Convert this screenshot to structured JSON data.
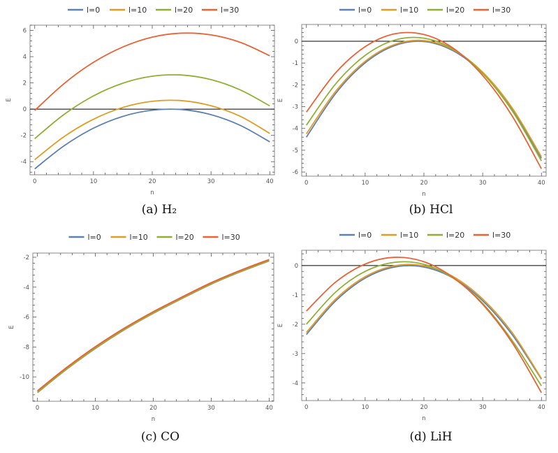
{
  "colors": {
    "l0": "#5E81B5",
    "l10": "#E19C24",
    "l20": "#8FB032",
    "l30": "#EB6235",
    "frame": "#8a8a8a",
    "zero_line": "#000000"
  },
  "chart_data": [
    {
      "type": "line",
      "caption": "(a) H₂",
      "xlabel": "n",
      "ylabel": "E",
      "xlim": [
        -0.8,
        40.8
      ],
      "ylim": [
        -5.0,
        6.4
      ],
      "xticks": [
        "0",
        "10",
        "20",
        "30",
        "40"
      ],
      "yticks": [
        "-4",
        "-2",
        "0",
        "2",
        "4",
        "6"
      ],
      "grid": false,
      "zero_line": true,
      "legend": "top",
      "x": [
        0,
        5,
        10,
        15,
        20,
        25,
        30,
        35,
        40
      ],
      "series": [
        {
          "name": "l=0",
          "color": "#5E81B5",
          "values": [
            -4.55,
            -2.79,
            -1.45,
            -0.55,
            -0.08,
            -0.03,
            -0.42,
            -1.24,
            -2.49
          ]
        },
        {
          "name": "l=10",
          "color": "#E19C24",
          "values": [
            -3.85,
            -2.09,
            -0.77,
            0.13,
            0.6,
            0.65,
            0.26,
            -0.55,
            -1.85
          ]
        },
        {
          "name": "l=20",
          "color": "#8FB032",
          "values": [
            -2.25,
            -0.4,
            1.01,
            1.98,
            2.51,
            2.6,
            2.25,
            1.46,
            0.25
          ]
        },
        {
          "name": "l=30",
          "color": "#EB6235",
          "values": [
            -0.1,
            1.95,
            3.57,
            4.74,
            5.49,
            5.79,
            5.66,
            5.09,
            4.07
          ]
        }
      ]
    },
    {
      "type": "line",
      "caption": "(b) HCl",
      "xlabel": "n",
      "ylabel": "E",
      "xlim": [
        -0.8,
        40.8
      ],
      "ylim": [
        -6.19,
        0.77
      ],
      "xticks": [
        "0",
        "10",
        "20",
        "30",
        "40"
      ],
      "yticks": [
        "-6",
        "-5",
        "-4",
        "-3",
        "-2",
        "-1",
        "0"
      ],
      "grid": false,
      "zero_line": true,
      "legend": "top",
      "x": [
        0,
        5,
        10,
        15,
        20,
        25,
        30,
        35,
        40
      ],
      "series": [
        {
          "name": "l=0",
          "color": "#5E81B5",
          "values": [
            -4.4,
            -2.39,
            -0.99,
            -0.2,
            -0.01,
            -0.44,
            -1.47,
            -3.12,
            -5.37
          ]
        },
        {
          "name": "l=10",
          "color": "#E19C24",
          "values": [
            -4.25,
            -2.29,
            -0.92,
            -0.15,
            0.03,
            -0.39,
            -1.42,
            -3.05,
            -5.3
          ]
        },
        {
          "name": "l=20",
          "color": "#8FB032",
          "values": [
            -3.85,
            -1.95,
            -0.65,
            0.05,
            0.14,
            -0.36,
            -1.47,
            -3.18,
            -5.49
          ]
        },
        {
          "name": "l=30",
          "color": "#EB6235",
          "values": [
            -3.25,
            -1.44,
            -0.25,
            0.34,
            0.31,
            -0.32,
            -1.57,
            -3.42,
            -5.85
          ]
        }
      ]
    },
    {
      "type": "line",
      "caption": "(c) CO",
      "xlabel": "n",
      "ylabel": "E",
      "xlim": [
        -0.8,
        40.8
      ],
      "ylim": [
        -11.63,
        -1.72
      ],
      "xticks": [
        "0",
        "10",
        "20",
        "30",
        "40"
      ],
      "yticks": [
        "-10",
        "-8",
        "-6",
        "-4",
        "-2"
      ],
      "grid": false,
      "zero_line": false,
      "legend": "top",
      "x": [
        0,
        5,
        10,
        15,
        20,
        25,
        30,
        35,
        40
      ],
      "series": [
        {
          "name": "l=0",
          "color": "#5E81B5",
          "values": [
            -11.05,
            -9.5,
            -8.1,
            -6.85,
            -5.75,
            -4.75,
            -3.8,
            -2.98,
            -2.25
          ]
        },
        {
          "name": "l=10",
          "color": "#E19C24",
          "values": [
            -11.03,
            -9.48,
            -8.08,
            -6.83,
            -5.73,
            -4.73,
            -3.78,
            -2.96,
            -2.23
          ]
        },
        {
          "name": "l=20",
          "color": "#8FB032",
          "values": [
            -11.0,
            -9.45,
            -8.05,
            -6.8,
            -5.7,
            -4.7,
            -3.75,
            -2.93,
            -2.2
          ]
        },
        {
          "name": "l=30",
          "color": "#EB6235",
          "values": [
            -10.93,
            -9.38,
            -7.98,
            -6.74,
            -5.64,
            -4.65,
            -3.7,
            -2.88,
            -2.15
          ]
        }
      ]
    },
    {
      "type": "line",
      "caption": "(d) LiH",
      "xlabel": "n",
      "ylabel": "E",
      "xlim": [
        -0.8,
        40.8
      ],
      "ylim": [
        -4.6,
        0.52
      ],
      "xticks": [
        "0",
        "10",
        "20",
        "30",
        "40"
      ],
      "yticks": [
        "-4",
        "-3",
        "-2",
        "-1",
        "0"
      ],
      "grid": false,
      "zero_line": true,
      "legend": "top",
      "x": [
        0,
        5,
        10,
        15,
        20,
        25,
        30,
        35,
        40
      ],
      "series": [
        {
          "name": "l=0",
          "color": "#5E81B5",
          "values": [
            -2.35,
            -1.2,
            -0.43,
            -0.05,
            -0.05,
            -0.43,
            -1.2,
            -2.35,
            -3.87
          ]
        },
        {
          "name": "l=10",
          "color": "#E19C24",
          "values": [
            -2.28,
            -1.14,
            -0.38,
            -0.01,
            -0.01,
            -0.38,
            -1.14,
            -2.28,
            -3.85
          ]
        },
        {
          "name": "l=20",
          "color": "#8FB032",
          "values": [
            -2.0,
            -0.9,
            -0.2,
            0.11,
            0.04,
            -0.43,
            -1.29,
            -2.55,
            -4.1
          ]
        },
        {
          "name": "l=30",
          "color": "#EB6235",
          "values": [
            -1.55,
            -0.56,
            0.05,
            0.28,
            0.13,
            -0.41,
            -1.32,
            -2.62,
            -4.33
          ]
        }
      ]
    }
  ]
}
